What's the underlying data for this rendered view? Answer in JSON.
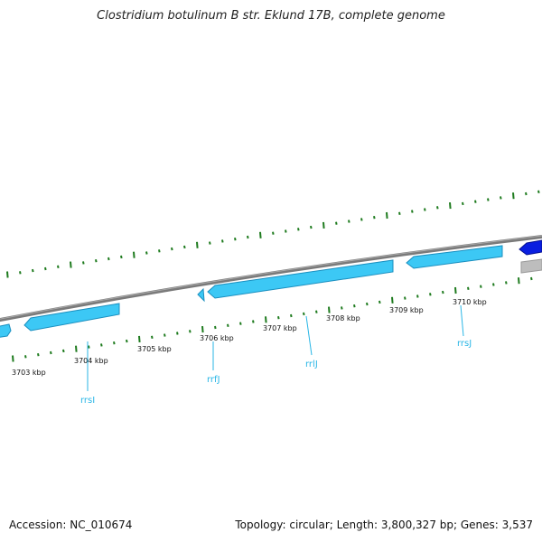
{
  "title": "Clostridium botulinum B str. Eklund 17B, complete genome",
  "footer": {
    "accession": "Accession: NC_010674",
    "summary": "Topology: circular; Length: 3,800,327 bp; Genes: 3,537"
  },
  "colors": {
    "backbone": "#7a7a7a",
    "feature_light": "#3cc8f5",
    "feature_dark": "#0a1ee0",
    "feature_gray": "#bdbdbd",
    "gc_ticks": "#1e7b1e",
    "label": "#29b6e6"
  },
  "ruler": {
    "tick_labels": [
      "3703 kbp",
      "3704 kbp",
      "3705 kbp",
      "3706 kbp",
      "3707 kbp",
      "3708 kbp",
      "3709 kbp",
      "3710 kbp"
    ]
  },
  "gene_labels": [
    "rrsI",
    "rrfJ",
    "rrlJ",
    "rrsJ"
  ]
}
